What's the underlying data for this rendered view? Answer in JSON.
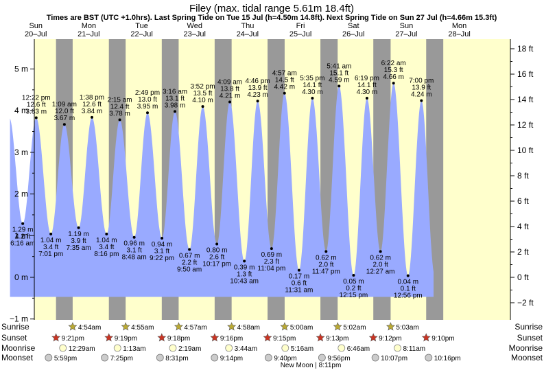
{
  "title": "Filey (max. tidal range 5.61m 18.4ft)",
  "subtitle": "Times are BST (UTC +1.0hrs). Last Spring Tide on Tue 15 Jul (h=4.50m 14.8ft). Next Spring Tide on Sun 27 Jul (h=4.66m 15.3ft)",
  "colors": {
    "day": "#ffffcc",
    "night": "#999999",
    "water": "#99aaff",
    "date_text": "#cc0000",
    "sun_star": "#bbaa33",
    "sunset_star": "#cc3322",
    "moon": "#ffffcc",
    "moonset": "#cccccc"
  },
  "chart_data": {
    "type": "area",
    "ylim_m": [
      -1,
      5.7
    ],
    "ylim_ft": [
      -3.28,
      18.7
    ],
    "y_ticks_m": [
      "−1 m",
      "0 m",
      "1 m",
      "2 m",
      "3 m",
      "4 m",
      "5 m"
    ],
    "y_ticks_ft": [
      "−2 ft",
      "0 ft",
      "2 ft",
      "4 ft",
      "6 ft",
      "8 ft",
      "10 ft",
      "12 ft",
      "14 ft",
      "16 ft",
      "18 ft"
    ],
    "days": [
      {
        "dow": "Sun",
        "date": "20–Jul"
      },
      {
        "dow": "Mon",
        "date": "21–Jul"
      },
      {
        "dow": "Tue",
        "date": "22–Jul"
      },
      {
        "dow": "Wed",
        "date": "23–Jul"
      },
      {
        "dow": "Thu",
        "date": "24–Jul"
      },
      {
        "dow": "Fri",
        "date": "25–Jul"
      },
      {
        "dow": "Sat",
        "date": "26–Jul"
      },
      {
        "dow": "Sun",
        "date": "27–Jul"
      },
      {
        "dow": "Mon",
        "date": "28–Jul"
      }
    ],
    "tides": [
      {
        "t": 6.27,
        "m": 1.29,
        "ft": "4.2 ft",
        "mlabel": "1.29 m",
        "time": "6:16 am"
      },
      {
        "t": 12.37,
        "m": 3.83,
        "ft": "12.6 ft",
        "mlabel": "3.83 m",
        "time": "12:22 pm"
      },
      {
        "t": 19.02,
        "m": 1.04,
        "ft": "3.4 ft",
        "mlabel": "1.04 m",
        "time": "7:01 pm"
      },
      {
        "t": 25.15,
        "m": 3.67,
        "ft": "12.0 ft",
        "mlabel": "3.67 m",
        "time": "1:09 am"
      },
      {
        "t": 31.58,
        "m": 1.19,
        "ft": "3.9 ft",
        "mlabel": "1.19 m",
        "time": "7:35 am"
      },
      {
        "t": 37.63,
        "m": 3.84,
        "ft": "12.6 ft",
        "mlabel": "3.84 m",
        "time": "1:38 pm"
      },
      {
        "t": 44.27,
        "m": 1.04,
        "ft": "3.4 ft",
        "mlabel": "1.04 m",
        "time": "8:16 pm"
      },
      {
        "t": 50.25,
        "m": 3.78,
        "ft": "12.4 ft",
        "mlabel": "3.78 m",
        "time": "2:15 am"
      },
      {
        "t": 56.8,
        "m": 0.96,
        "ft": "3.1 ft",
        "mlabel": "0.96 m",
        "time": "8:48 am"
      },
      {
        "t": 62.82,
        "m": 3.95,
        "ft": "13.0 ft",
        "mlabel": "3.95 m",
        "time": "2:49 pm"
      },
      {
        "t": 69.37,
        "m": 0.94,
        "ft": "3.1 ft",
        "mlabel": "0.94 m",
        "time": "9:22 pm"
      },
      {
        "t": 75.27,
        "m": 3.98,
        "ft": "13.1 ft",
        "mlabel": "3.98 m",
        "time": "3:16 am"
      },
      {
        "t": 81.83,
        "m": 0.67,
        "ft": "2.2 ft",
        "mlabel": "0.67 m",
        "time": "9:50 am"
      },
      {
        "t": 87.87,
        "m": 4.1,
        "ft": "13.5 ft",
        "mlabel": "4.10 m",
        "time": "3:52 pm"
      },
      {
        "t": 94.28,
        "m": 0.8,
        "ft": "2.6 ft",
        "mlabel": "0.80 m",
        "time": "10:17 pm"
      },
      {
        "t": 100.15,
        "m": 4.21,
        "ft": "13.8 ft",
        "mlabel": "4.21 m",
        "time": "4:09 am"
      },
      {
        "t": 106.72,
        "m": 0.39,
        "ft": "1.3 ft",
        "mlabel": "0.39 m",
        "time": "10:43 am"
      },
      {
        "t": 112.77,
        "m": 4.23,
        "ft": "13.9 ft",
        "mlabel": "4.23 m",
        "time": "4:46 pm"
      },
      {
        "t": 119.07,
        "m": 0.69,
        "ft": "2.3 ft",
        "mlabel": "0.69 m",
        "time": "11:04 pm"
      },
      {
        "t": 124.95,
        "m": 4.42,
        "ft": "14.5 ft",
        "mlabel": "4.42 m",
        "time": "4:57 am"
      },
      {
        "t": 131.52,
        "m": 0.17,
        "ft": "0.6 ft",
        "mlabel": "0.17 m",
        "time": "11:31 am"
      },
      {
        "t": 137.58,
        "m": 4.3,
        "ft": "14.1 ft",
        "mlabel": "4.30 m",
        "time": "5:35 pm"
      },
      {
        "t": 143.78,
        "m": 0.62,
        "ft": "2.0 ft",
        "mlabel": "0.62 m",
        "time": "11:47 pm"
      },
      {
        "t": 149.68,
        "m": 4.59,
        "ft": "15.1 ft",
        "mlabel": "4.59 m",
        "time": "5:41 am"
      },
      {
        "t": 156.25,
        "m": 0.05,
        "ft": "0.2 ft",
        "mlabel": "0.05 m",
        "time": "12:15 pm"
      },
      {
        "t": 162.32,
        "m": 4.3,
        "ft": "14.1 ft",
        "mlabel": "4.30 m",
        "time": "6:19 pm"
      },
      {
        "t": 168.45,
        "m": 0.62,
        "ft": "2.0 ft",
        "mlabel": "0.62 m",
        "time": "12:27 am"
      },
      {
        "t": 174.37,
        "m": 4.66,
        "ft": "15.3 ft",
        "mlabel": "4.66 m",
        "time": "6:22 am"
      },
      {
        "t": 180.93,
        "m": 0.04,
        "ft": "0.1 ft",
        "mlabel": "0.04 m",
        "time": "12:56 pm"
      },
      {
        "t": 187.0,
        "m": 4.24,
        "ft": "13.9 ft",
        "mlabel": "4.24 m",
        "time": "7:00 pm"
      }
    ],
    "curve_hours": [
      0.5,
      192.5
    ],
    "sunrise": [
      "4:54am",
      "4:55am",
      "4:57am",
      "4:58am",
      "5:00am",
      "5:02am",
      "5:03am"
    ],
    "sunset": [
      "9:21pm",
      "9:19pm",
      "9:18pm",
      "9:16pm",
      "9:15pm",
      "9:13pm",
      "9:12pm",
      "9:10pm"
    ],
    "moonrise": [
      "12:29am",
      "1:13am",
      "2:19am",
      "3:44am",
      "5:16am",
      "6:46am",
      "8:11am"
    ],
    "moonset": [
      "5:59pm",
      "7:25pm",
      "8:31pm",
      "9:14pm",
      "9:40pm",
      "9:56pm",
      "10:07pm",
      "10:16pm"
    ],
    "row_labels": {
      "sunrise": "Sunrise",
      "sunset": "Sunset",
      "moonrise": "Moonrise",
      "moonset": "Moonset"
    },
    "note": "New Moon | 8:11pm"
  }
}
